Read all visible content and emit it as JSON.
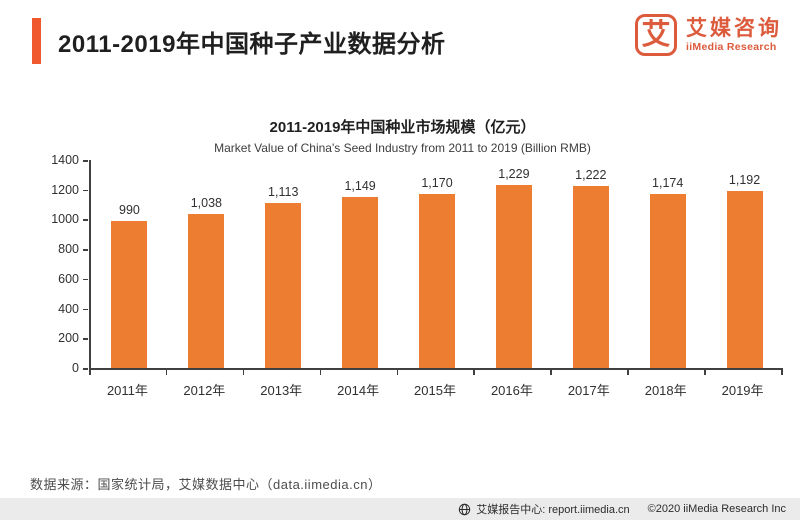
{
  "colors": {
    "accent": "#F0592E",
    "bar": "#ED7D31",
    "logo": "#DC5B3C",
    "axis": "#404040"
  },
  "header": {
    "title": "2011-2019年中国种子产业数据分析",
    "logo": {
      "icon_glyph": "艾",
      "name_cn": "艾媒咨询",
      "name_en": "iiMedia Research"
    }
  },
  "chart_data": {
    "type": "bar",
    "title": "2011-2019年中国种业市场规模（亿元）",
    "subtitle": "Market Value of China's Seed Industry from 2011 to 2019 (Billion RMB)",
    "categories": [
      "2011年",
      "2012年",
      "2013年",
      "2014年",
      "2015年",
      "2016年",
      "2017年",
      "2018年",
      "2019年"
    ],
    "values": [
      990,
      1038,
      1113,
      1149,
      1170,
      1229,
      1222,
      1174,
      1192
    ],
    "value_labels": [
      "990",
      "1,038",
      "1,113",
      "1,149",
      "1,170",
      "1,229",
      "1,222",
      "1,174",
      "1,192"
    ],
    "xlabel": "",
    "ylabel": "",
    "ylim": [
      0,
      1400
    ],
    "ytick_step": 200,
    "grid": false,
    "legend": false,
    "bar_color": "#ED7D31"
  },
  "footer": {
    "source_note": "数据来源：国家统计局，艾媒数据中心（data.iimedia.cn）"
  },
  "bottom_bar": {
    "report_center": "艾媒报告中心: report.iimedia.cn",
    "copyright": "©2020  iiMedia Research Inc"
  }
}
